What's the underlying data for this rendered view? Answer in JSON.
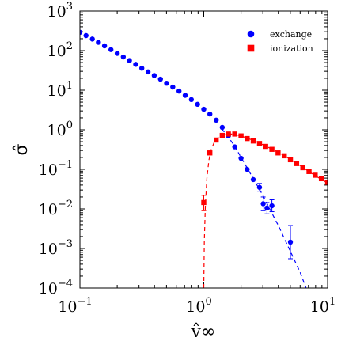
{
  "chart_data": {
    "type": "scatter",
    "title": "",
    "xlabel": "v̂∞",
    "ylabel": "σ̂",
    "xscale": "log",
    "yscale": "log",
    "xlim": [
      0.1,
      10
    ],
    "ylim": [
      0.0001,
      1000
    ],
    "x_tick_labels": [
      {
        "value": 0.1,
        "base": "10",
        "exp": "−1"
      },
      {
        "value": 1,
        "base": "10",
        "exp": "0"
      },
      {
        "value": 10,
        "base": "10",
        "exp": "1"
      }
    ],
    "y_tick_labels": [
      {
        "value": 0.0001,
        "base": "10",
        "exp": "−4"
      },
      {
        "value": 0.001,
        "base": "10",
        "exp": "−3"
      },
      {
        "value": 0.01,
        "base": "10",
        "exp": "−2"
      },
      {
        "value": 0.1,
        "base": "10",
        "exp": "−1"
      },
      {
        "value": 1,
        "base": "10",
        "exp": "0"
      },
      {
        "value": 10,
        "base": "10",
        "exp": "1"
      },
      {
        "value": 100,
        "base": "10",
        "exp": "2"
      },
      {
        "value": 1000,
        "base": "10",
        "exp": "3"
      }
    ],
    "legend_position": "top-right",
    "series": [
      {
        "name": "exchange",
        "color": "#0000ff",
        "marker": "circle",
        "points": [
          {
            "x": 0.1,
            "y": 290
          },
          {
            "x": 0.112,
            "y": 240
          },
          {
            "x": 0.126,
            "y": 196
          },
          {
            "x": 0.141,
            "y": 162
          },
          {
            "x": 0.158,
            "y": 132
          },
          {
            "x": 0.178,
            "y": 106
          },
          {
            "x": 0.2,
            "y": 85
          },
          {
            "x": 0.224,
            "y": 69
          },
          {
            "x": 0.251,
            "y": 56
          },
          {
            "x": 0.282,
            "y": 45
          },
          {
            "x": 0.316,
            "y": 36
          },
          {
            "x": 0.355,
            "y": 29
          },
          {
            "x": 0.398,
            "y": 23.5
          },
          {
            "x": 0.447,
            "y": 19
          },
          {
            "x": 0.501,
            "y": 15
          },
          {
            "x": 0.562,
            "y": 12
          },
          {
            "x": 0.631,
            "y": 9.5
          },
          {
            "x": 0.708,
            "y": 7.4
          },
          {
            "x": 0.794,
            "y": 5.8
          },
          {
            "x": 0.891,
            "y": 4.4
          },
          {
            "x": 1.0,
            "y": 3.3
          },
          {
            "x": 1.12,
            "y": 2.5
          },
          {
            "x": 1.26,
            "y": 1.75
          },
          {
            "x": 1.41,
            "y": 1.15
          },
          {
            "x": 1.58,
            "y": 0.7
          },
          {
            "x": 1.78,
            "y": 0.37
          },
          {
            "x": 2.0,
            "y": 0.19
          },
          {
            "x": 2.24,
            "y": 0.1
          },
          {
            "x": 2.51,
            "y": 0.055
          },
          {
            "x": 2.82,
            "y": 0.035,
            "err_low": 0.028,
            "err_high": 0.044
          },
          {
            "x": 3.02,
            "y": 0.0135,
            "err_low": 0.009,
            "err_high": 0.02
          },
          {
            "x": 3.24,
            "y": 0.0105,
            "err_low": 0.0075,
            "err_high": 0.0145
          },
          {
            "x": 3.55,
            "y": 0.012,
            "err_low": 0.0085,
            "err_high": 0.017
          },
          {
            "x": 5.01,
            "y": 0.00145,
            "err_low": 0.00055,
            "err_high": 0.0038
          }
        ],
        "fit_line": [
          {
            "x": 1.4,
            "y": 1.05
          },
          {
            "x": 1.6,
            "y": 0.62
          },
          {
            "x": 1.8,
            "y": 0.36
          },
          {
            "x": 2.0,
            "y": 0.2
          },
          {
            "x": 2.5,
            "y": 0.06
          },
          {
            "x": 3.0,
            "y": 0.022
          },
          {
            "x": 3.5,
            "y": 0.0085
          },
          {
            "x": 4.0,
            "y": 0.0038
          },
          {
            "x": 5.0,
            "y": 0.00085
          },
          {
            "x": 6.0,
            "y": 0.00025
          },
          {
            "x": 6.7,
            "y": 0.0001
          }
        ]
      },
      {
        "name": "ionization",
        "color": "#ff0000",
        "marker": "square",
        "points": [
          {
            "x": 1.0,
            "y": 0.0145,
            "err_low": 0.009,
            "err_high": 0.022
          },
          {
            "x": 1.12,
            "y": 0.26
          },
          {
            "x": 1.26,
            "y": 0.55
          },
          {
            "x": 1.41,
            "y": 0.72
          },
          {
            "x": 1.58,
            "y": 0.78
          },
          {
            "x": 1.78,
            "y": 0.78
          },
          {
            "x": 2.0,
            "y": 0.7
          },
          {
            "x": 2.24,
            "y": 0.6
          },
          {
            "x": 2.51,
            "y": 0.52
          },
          {
            "x": 2.82,
            "y": 0.45
          },
          {
            "x": 3.16,
            "y": 0.38
          },
          {
            "x": 3.55,
            "y": 0.32
          },
          {
            "x": 3.98,
            "y": 0.26
          },
          {
            "x": 4.47,
            "y": 0.22
          },
          {
            "x": 5.01,
            "y": 0.175
          },
          {
            "x": 5.62,
            "y": 0.14
          },
          {
            "x": 6.31,
            "y": 0.11
          },
          {
            "x": 7.08,
            "y": 0.088
          },
          {
            "x": 7.94,
            "y": 0.071
          },
          {
            "x": 8.91,
            "y": 0.058
          },
          {
            "x": 10.0,
            "y": 0.047
          }
        ],
        "fit_line": [
          {
            "x": 1.0,
            "y": 0.0001
          },
          {
            "x": 1.01,
            "y": 0.0015
          },
          {
            "x": 1.03,
            "y": 0.012
          },
          {
            "x": 1.06,
            "y": 0.06
          },
          {
            "x": 1.1,
            "y": 0.17
          },
          {
            "x": 1.15,
            "y": 0.32
          },
          {
            "x": 1.22,
            "y": 0.5
          },
          {
            "x": 1.32,
            "y": 0.66
          },
          {
            "x": 1.45,
            "y": 0.76
          },
          {
            "x": 1.6,
            "y": 0.79
          },
          {
            "x": 1.8,
            "y": 0.76
          },
          {
            "x": 2.0,
            "y": 0.7
          },
          {
            "x": 2.5,
            "y": 0.54
          },
          {
            "x": 3.0,
            "y": 0.42
          },
          {
            "x": 4.0,
            "y": 0.27
          },
          {
            "x": 5.0,
            "y": 0.18
          },
          {
            "x": 6.0,
            "y": 0.125
          },
          {
            "x": 7.0,
            "y": 0.09
          },
          {
            "x": 8.0,
            "y": 0.068
          },
          {
            "x": 10.0,
            "y": 0.045
          }
        ]
      }
    ]
  }
}
